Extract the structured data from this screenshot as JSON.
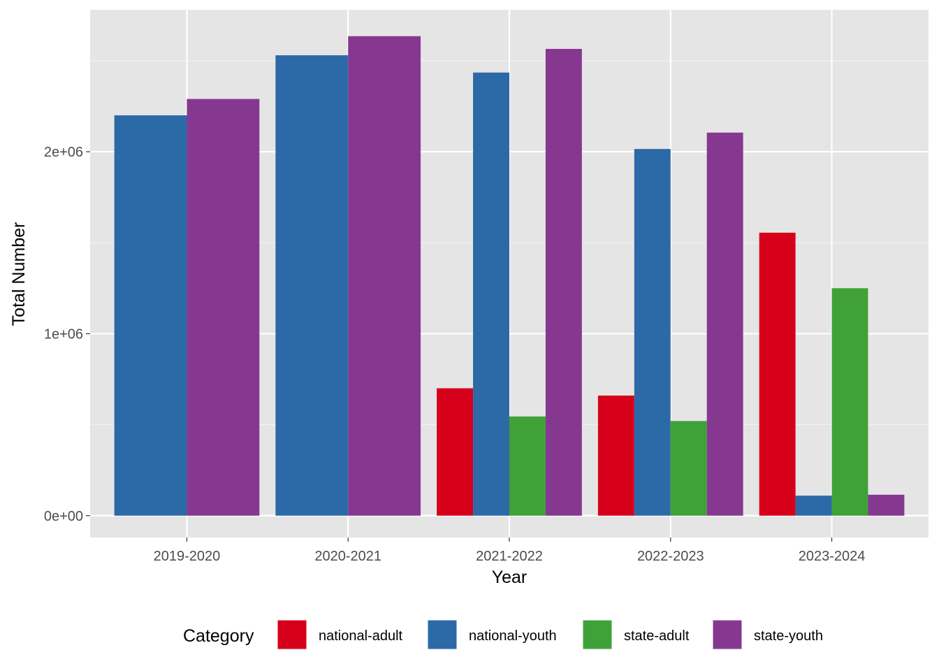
{
  "chart_data": {
    "type": "bar",
    "title": "",
    "xlabel": "Year",
    "ylabel": "Total Number",
    "categories": [
      "2019-2020",
      "2020-2021",
      "2021-2022",
      "2022-2023",
      "2023-2024"
    ],
    "ylim": [
      -120000,
      2780000
    ],
    "yticks": [
      0,
      1000000,
      2000000
    ],
    "ytick_labels": [
      "0e+00",
      "1e+06",
      "2e+06"
    ],
    "grid": true,
    "legend": {
      "title": "Category",
      "position": "bottom"
    },
    "series": [
      {
        "name": "national-adult",
        "color": "#D7001A",
        "values": [
          null,
          null,
          700000,
          660000,
          1555000
        ]
      },
      {
        "name": "national-youth",
        "color": "#2C69A7",
        "values": [
          2200000,
          2530000,
          2435000,
          2015000,
          110000
        ]
      },
      {
        "name": "state-adult",
        "color": "#41A139",
        "values": [
          null,
          null,
          545000,
          520000,
          1250000
        ]
      },
      {
        "name": "state-youth",
        "color": "#863891",
        "values": [
          2290000,
          2635000,
          2565000,
          2105000,
          115000
        ]
      }
    ]
  }
}
